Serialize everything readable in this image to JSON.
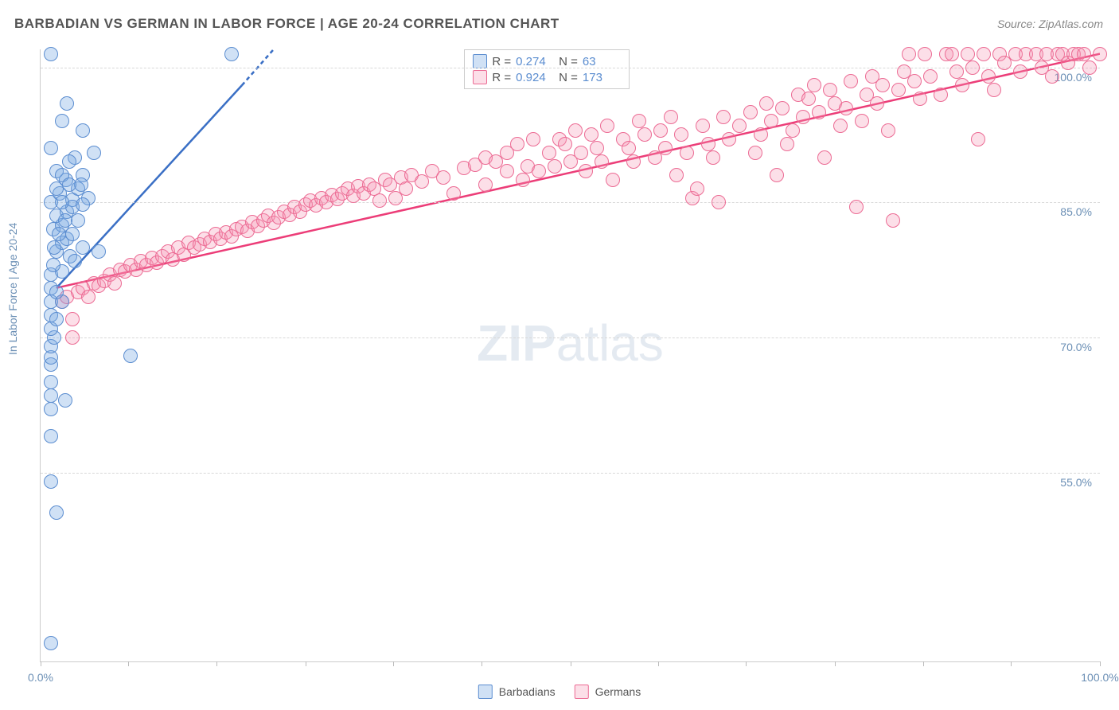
{
  "title": "BARBADIAN VS GERMAN IN LABOR FORCE | AGE 20-24 CORRELATION CHART",
  "source": "Source: ZipAtlas.com",
  "watermark_bold": "ZIP",
  "watermark_light": "atlas",
  "chart": {
    "type": "scatter",
    "background_color": "#ffffff",
    "grid_color": "#d8d8d8",
    "axis_color": "#cccccc",
    "label_color": "#6b8fb5",
    "ylabel": "In Labor Force | Age 20-24",
    "xlim": [
      0,
      100
    ],
    "ylim": [
      34,
      102
    ],
    "y_ticks": [
      55,
      70,
      85,
      100
    ],
    "y_tick_labels": [
      "55.0%",
      "70.0%",
      "85.0%",
      "100.0%"
    ],
    "x_ticks": [
      0,
      8.3,
      16.6,
      25,
      33.3,
      41.6,
      50,
      58.3,
      66.6,
      75,
      83.3,
      91.6,
      100
    ],
    "x_tick_labels": {
      "0": "0.0%",
      "100": "100.0%"
    },
    "marker_radius": 9,
    "series": [
      {
        "key": "barbadians",
        "label": "Barbadians",
        "fill": "rgba(120,170,225,0.35)",
        "stroke": "#5b8dd0",
        "R": "0.274",
        "N": "63",
        "trend": {
          "x1": 1.5,
          "y1": 75.5,
          "x2": 22,
          "y2": 102,
          "color": "#3a6fc5",
          "width": 2.5,
          "dash_tail": true
        },
        "points": [
          [
            1,
            101.5
          ],
          [
            18,
            101.5
          ],
          [
            1,
            54
          ],
          [
            1,
            59
          ],
          [
            1,
            62
          ],
          [
            1,
            63.5
          ],
          [
            1,
            65
          ],
          [
            1,
            67
          ],
          [
            1,
            67.8
          ],
          [
            1,
            69
          ],
          [
            1.3,
            70
          ],
          [
            1,
            71
          ],
          [
            1,
            72.5
          ],
          [
            1.5,
            72
          ],
          [
            1,
            74
          ],
          [
            2,
            74
          ],
          [
            1,
            75.5
          ],
          [
            1.5,
            75
          ],
          [
            1,
            77
          ],
          [
            2,
            77.3
          ],
          [
            1.2,
            78
          ],
          [
            2.8,
            79
          ],
          [
            1.5,
            79.5
          ],
          [
            2,
            80.5
          ],
          [
            2.5,
            81
          ],
          [
            3,
            81.5
          ],
          [
            1.2,
            82
          ],
          [
            2,
            82.5
          ],
          [
            1.5,
            83.5
          ],
          [
            2.5,
            84
          ],
          [
            1,
            85
          ],
          [
            3,
            85.3
          ],
          [
            1.8,
            86
          ],
          [
            3.5,
            86.5
          ],
          [
            2.4,
            87.5
          ],
          [
            4,
            88
          ],
          [
            1.5,
            88.5
          ],
          [
            3.2,
            90
          ],
          [
            4,
            93
          ],
          [
            2,
            94
          ],
          [
            2.5,
            96
          ],
          [
            3.5,
            83
          ],
          [
            4,
            80
          ],
          [
            5.5,
            79.5
          ],
          [
            8.5,
            68
          ],
          [
            1,
            36
          ],
          [
            1.5,
            50.5
          ],
          [
            2.3,
            63
          ],
          [
            5,
            90.5
          ],
          [
            3,
            84.5
          ],
          [
            2,
            88
          ],
          [
            1,
            91
          ],
          [
            4.5,
            85.5
          ],
          [
            2.7,
            89.5
          ],
          [
            1.3,
            80
          ],
          [
            3.8,
            87
          ],
          [
            1.7,
            81.5
          ],
          [
            2.3,
            83
          ],
          [
            4,
            84.8
          ],
          [
            1.5,
            86.5
          ],
          [
            2,
            85
          ],
          [
            2.7,
            87
          ],
          [
            3.2,
            78.5
          ]
        ]
      },
      {
        "key": "germans",
        "label": "Germans",
        "fill": "rgba(245,150,180,0.30)",
        "stroke": "#ec6b94",
        "R": "0.924",
        "N": "173",
        "trend": {
          "x1": 1.5,
          "y1": 75.5,
          "x2": 100,
          "y2": 101.5,
          "color": "#ec3d78",
          "width": 2.5
        },
        "points": [
          [
            2,
            74
          ],
          [
            2.5,
            74.5
          ],
          [
            3,
            70
          ],
          [
            3,
            72
          ],
          [
            3.5,
            75
          ],
          [
            4,
            75.5
          ],
          [
            4.5,
            74.5
          ],
          [
            5,
            76
          ],
          [
            5.5,
            75.7
          ],
          [
            6,
            76.3
          ],
          [
            6.5,
            77
          ],
          [
            7,
            76
          ],
          [
            7.5,
            77.5
          ],
          [
            8,
            77.3
          ],
          [
            8.5,
            78
          ],
          [
            9,
            77.5
          ],
          [
            9.5,
            78.5
          ],
          [
            10,
            78
          ],
          [
            10.5,
            78.8
          ],
          [
            11,
            78.3
          ],
          [
            11.5,
            79
          ],
          [
            12,
            79.5
          ],
          [
            12.5,
            78.7
          ],
          [
            13,
            80
          ],
          [
            13.5,
            79.2
          ],
          [
            14,
            80.5
          ],
          [
            14.5,
            80
          ],
          [
            15,
            80.3
          ],
          [
            15.5,
            81
          ],
          [
            16,
            80.6
          ],
          [
            16.5,
            81.5
          ],
          [
            17,
            81
          ],
          [
            17.5,
            81.7
          ],
          [
            18,
            81.2
          ],
          [
            18.5,
            82
          ],
          [
            19,
            82.3
          ],
          [
            19.5,
            81.8
          ],
          [
            20,
            82.8
          ],
          [
            20.5,
            82.4
          ],
          [
            21,
            83
          ],
          [
            21.5,
            83.5
          ],
          [
            22,
            82.7
          ],
          [
            22.5,
            83.3
          ],
          [
            23,
            84
          ],
          [
            23.5,
            83.6
          ],
          [
            24,
            84.5
          ],
          [
            24.5,
            84
          ],
          [
            25,
            84.8
          ],
          [
            25.5,
            85.2
          ],
          [
            26,
            84.7
          ],
          [
            26.5,
            85.5
          ],
          [
            27,
            85
          ],
          [
            27.5,
            85.8
          ],
          [
            28,
            85.4
          ],
          [
            28.5,
            86
          ],
          [
            29,
            86.5
          ],
          [
            29.5,
            85.7
          ],
          [
            30,
            86.8
          ],
          [
            30.5,
            86
          ],
          [
            31,
            87
          ],
          [
            31.5,
            86.5
          ],
          [
            32,
            85.2
          ],
          [
            32.5,
            87.5
          ],
          [
            33,
            87
          ],
          [
            33.5,
            85.5
          ],
          [
            34,
            87.8
          ],
          [
            34.5,
            86.5
          ],
          [
            35,
            88
          ],
          [
            36,
            87.3
          ],
          [
            37,
            88.5
          ],
          [
            38,
            87.8
          ],
          [
            39,
            86
          ],
          [
            40,
            88.8
          ],
          [
            41,
            89.2
          ],
          [
            42,
            90
          ],
          [
            42,
            87
          ],
          [
            43,
            89.5
          ],
          [
            44,
            88.5
          ],
          [
            44,
            90.5
          ],
          [
            45,
            91.5
          ],
          [
            45.5,
            87.5
          ],
          [
            46,
            89
          ],
          [
            46.5,
            92
          ],
          [
            47,
            88.5
          ],
          [
            48,
            90.5
          ],
          [
            48.5,
            89
          ],
          [
            49,
            92
          ],
          [
            49.5,
            91.5
          ],
          [
            50,
            89.5
          ],
          [
            50.5,
            93
          ],
          [
            51,
            90.5
          ],
          [
            51.5,
            88.5
          ],
          [
            52,
            92.5
          ],
          [
            52.5,
            91
          ],
          [
            53,
            89.5
          ],
          [
            53.5,
            93.5
          ],
          [
            54,
            87.5
          ],
          [
            55,
            92
          ],
          [
            55.5,
            91
          ],
          [
            56,
            89.5
          ],
          [
            56.5,
            94
          ],
          [
            57,
            92.5
          ],
          [
            58,
            90
          ],
          [
            58.5,
            93
          ],
          [
            59,
            91
          ],
          [
            59.5,
            94.5
          ],
          [
            60,
            88
          ],
          [
            60.5,
            92.5
          ],
          [
            61,
            90.5
          ],
          [
            61.5,
            85.5
          ],
          [
            62,
            86.5
          ],
          [
            62.5,
            93.5
          ],
          [
            63,
            91.5
          ],
          [
            63.5,
            90
          ],
          [
            64,
            85
          ],
          [
            64.5,
            94.5
          ],
          [
            65,
            92
          ],
          [
            66,
            93.5
          ],
          [
            67,
            95
          ],
          [
            67.5,
            90.5
          ],
          [
            68,
            92.5
          ],
          [
            68.5,
            96
          ],
          [
            69,
            94
          ],
          [
            69.5,
            88
          ],
          [
            70,
            95.5
          ],
          [
            70.5,
            91.5
          ],
          [
            71,
            93
          ],
          [
            71.5,
            97
          ],
          [
            72,
            94.5
          ],
          [
            72.5,
            96.5
          ],
          [
            73,
            98
          ],
          [
            73.5,
            95
          ],
          [
            74,
            90
          ],
          [
            74.5,
            97.5
          ],
          [
            75,
            96
          ],
          [
            75.5,
            93.5
          ],
          [
            76,
            95.5
          ],
          [
            76.5,
            98.5
          ],
          [
            77,
            84.5
          ],
          [
            77.5,
            94
          ],
          [
            78,
            97
          ],
          [
            78.5,
            99
          ],
          [
            79,
            96
          ],
          [
            79.5,
            98
          ],
          [
            80,
            93
          ],
          [
            80.5,
            83
          ],
          [
            81,
            97.5
          ],
          [
            81.5,
            99.5
          ],
          [
            82,
            101.5
          ],
          [
            82.5,
            98.5
          ],
          [
            83,
            96.5
          ],
          [
            83.5,
            101.5
          ],
          [
            84,
            99
          ],
          [
            85,
            97
          ],
          [
            85.5,
            101.5
          ],
          [
            86,
            101.5
          ],
          [
            86.5,
            99.5
          ],
          [
            87,
            98
          ],
          [
            87.5,
            101.5
          ],
          [
            88,
            100
          ],
          [
            88.5,
            92
          ],
          [
            89,
            101.5
          ],
          [
            89.5,
            99
          ],
          [
            90,
            97.5
          ],
          [
            90.5,
            101.5
          ],
          [
            91,
            100.5
          ],
          [
            92,
            101.5
          ],
          [
            92.5,
            99.5
          ],
          [
            93,
            101.5
          ],
          [
            94,
            101.5
          ],
          [
            94.5,
            100
          ],
          [
            95,
            101.5
          ],
          [
            95.5,
            99
          ],
          [
            96,
            101.5
          ],
          [
            96.5,
            101.5
          ],
          [
            97,
            100.5
          ],
          [
            97.5,
            101.5
          ],
          [
            98,
            101.5
          ],
          [
            98.5,
            101.5
          ],
          [
            99,
            100
          ],
          [
            100,
            101.5
          ]
        ]
      }
    ],
    "legend_labels": {
      "r": "R =",
      "n": "N ="
    },
    "bottom_legend": [
      "Barbadians",
      "Germans"
    ]
  }
}
